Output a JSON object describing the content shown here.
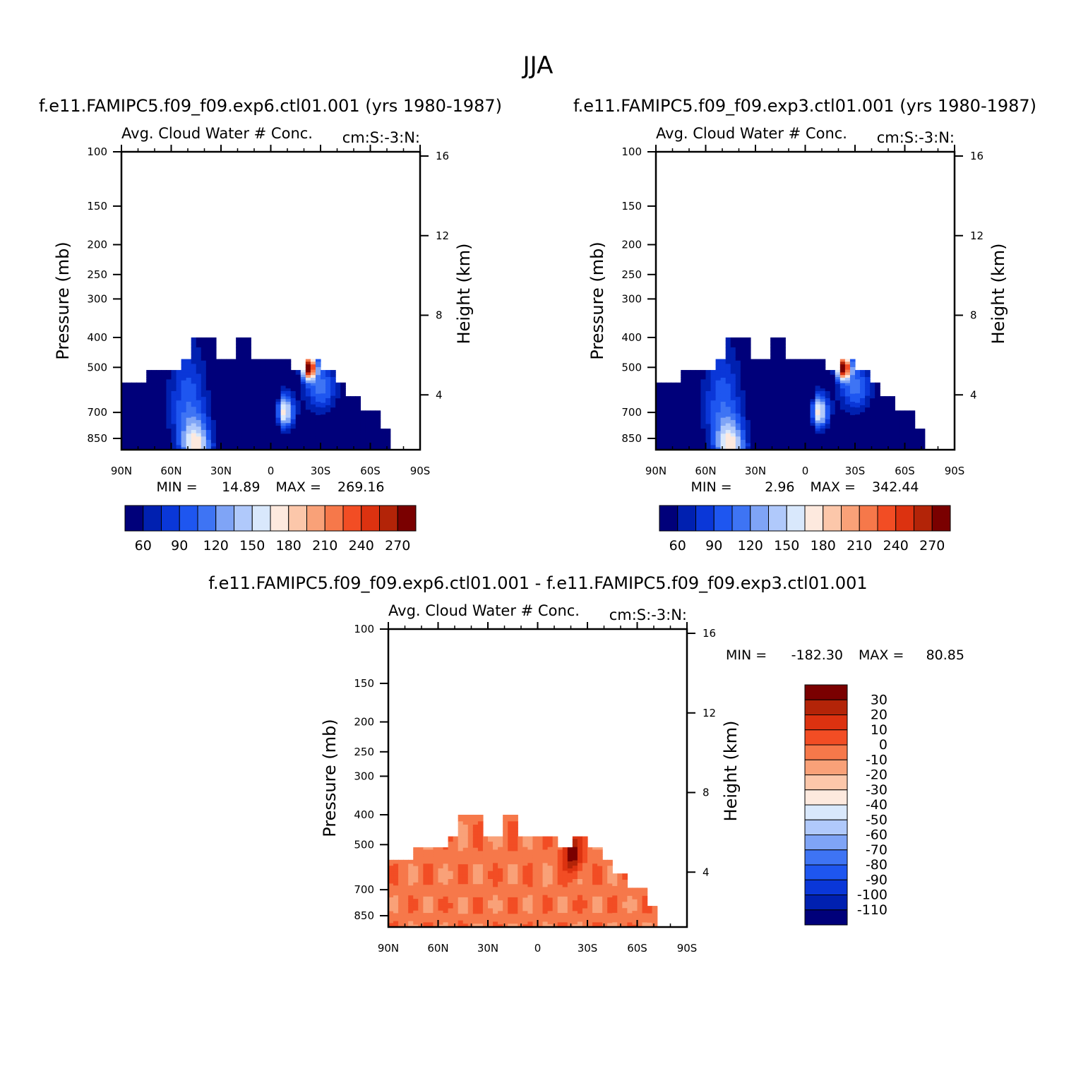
{
  "figure": {
    "title": "JJA"
  },
  "colors": {
    "abs": [
      "#00007a",
      "#0020b0",
      "#0a37d8",
      "#1e56f0",
      "#3e74f4",
      "#7fa4f6",
      "#b0c9fb",
      "#d9e8fc",
      "#fde9de",
      "#fcc7aa",
      "#f9a178",
      "#f6784a",
      "#f24d24",
      "#dc3210",
      "#b32408",
      "#7a0000"
    ],
    "diff": [
      "#00007a",
      "#0020b0",
      "#0a37d8",
      "#1e56f0",
      "#3e74f4",
      "#7fa4f6",
      "#b0c9fb",
      "#d9e8fc",
      "#fde9de",
      "#fcc7aa",
      "#f9a178",
      "#f6784a",
      "#f24d24",
      "#dc3210",
      "#b32408",
      "#7a0000"
    ]
  },
  "chart_data": [
    {
      "type": "heatmap",
      "title": "f.e11.FAMIPC5.f09_f09.exp6.ctl01.001 (yrs 1980-1987)",
      "subtitle_left": "Avg. Cloud Water # Conc.",
      "subtitle_right": "cm:S:-3:N:",
      "ylabel": "Pressure (mb)",
      "ylabel_right": "Height (km)",
      "x_ticks": [
        "90N",
        "60N",
        "30N",
        "0",
        "30S",
        "60S",
        "90S"
      ],
      "x_values": [
        90,
        60,
        30,
        0,
        -30,
        -60,
        -90
      ],
      "y_ticks": [
        "100",
        "150",
        "200",
        "250",
        "300",
        "400",
        "500",
        "700",
        "850"
      ],
      "y_values": [
        100,
        150,
        200,
        250,
        300,
        400,
        500,
        700,
        850
      ],
      "y_log": true,
      "ylim": [
        100,
        925
      ],
      "height_ticks": [
        "16",
        "12",
        "8",
        "4"
      ],
      "height_values": [
        16,
        12,
        8,
        4
      ],
      "min_label": "MIN =",
      "min": "14.89",
      "max_label": "MAX =",
      "max": "269.16",
      "levels": [
        60,
        75,
        90,
        105,
        120,
        135,
        150,
        165,
        180,
        195,
        210,
        225,
        240,
        255,
        270
      ],
      "colorbar_labels": [
        "60",
        "90",
        "120",
        "150",
        "180",
        "210",
        "240",
        "270"
      ]
    },
    {
      "type": "heatmap",
      "title": "f.e11.FAMIPC5.f09_f09.exp3.ctl01.001 (yrs 1980-1987)",
      "subtitle_left": "Avg. Cloud Water # Conc.",
      "subtitle_right": "cm:S:-3:N:",
      "ylabel": "Pressure (mb)",
      "ylabel_right": "Height (km)",
      "x_ticks": [
        "90N",
        "60N",
        "30N",
        "0",
        "30S",
        "60S",
        "90S"
      ],
      "x_values": [
        90,
        60,
        30,
        0,
        -30,
        -60,
        -90
      ],
      "y_ticks": [
        "100",
        "150",
        "200",
        "250",
        "300",
        "400",
        "500",
        "700",
        "850"
      ],
      "y_values": [
        100,
        150,
        200,
        250,
        300,
        400,
        500,
        700,
        850
      ],
      "y_log": true,
      "ylim": [
        100,
        925
      ],
      "height_ticks": [
        "16",
        "12",
        "8",
        "4"
      ],
      "height_values": [
        16,
        12,
        8,
        4
      ],
      "min_label": "MIN =",
      "min": "2.96",
      "max_label": "MAX =",
      "max": "342.44",
      "levels": [
        60,
        75,
        90,
        105,
        120,
        135,
        150,
        165,
        180,
        195,
        210,
        225,
        240,
        255,
        270
      ],
      "colorbar_labels": [
        "60",
        "90",
        "120",
        "150",
        "180",
        "210",
        "240",
        "270"
      ]
    },
    {
      "type": "heatmap",
      "title": "f.e11.FAMIPC5.f09_f09.exp6.ctl01.001 - f.e11.FAMIPC5.f09_f09.exp3.ctl01.001",
      "subtitle_left": "Avg. Cloud Water # Conc.",
      "subtitle_right": "cm:S:-3:N:",
      "ylabel": "Pressure (mb)",
      "ylabel_right": "Height (km)",
      "x_ticks": [
        "90N",
        "60N",
        "30N",
        "0",
        "30S",
        "60S",
        "90S"
      ],
      "x_values": [
        90,
        60,
        30,
        0,
        -30,
        -60,
        -90
      ],
      "y_ticks": [
        "100",
        "150",
        "200",
        "250",
        "300",
        "400",
        "500",
        "700",
        "850"
      ],
      "y_values": [
        100,
        150,
        200,
        250,
        300,
        400,
        500,
        700,
        850
      ],
      "y_log": true,
      "ylim": [
        100,
        925
      ],
      "height_ticks": [
        "16",
        "12",
        "8",
        "4"
      ],
      "height_values": [
        16,
        12,
        8,
        4
      ],
      "min_label": "MIN =",
      "min": "-182.30",
      "max_label": "MAX =",
      "max": "80.85",
      "levels": [
        -110,
        -100,
        -90,
        -80,
        -70,
        -60,
        -50,
        -40,
        -30,
        -20,
        -10,
        0,
        10,
        20,
        30
      ],
      "colorbar_labels": [
        "30",
        "20",
        "10",
        "0",
        "-10",
        "-20",
        "-30",
        "-40",
        "-50",
        "-60",
        "-70",
        "-80",
        "-90",
        "-100",
        "-110"
      ]
    }
  ]
}
